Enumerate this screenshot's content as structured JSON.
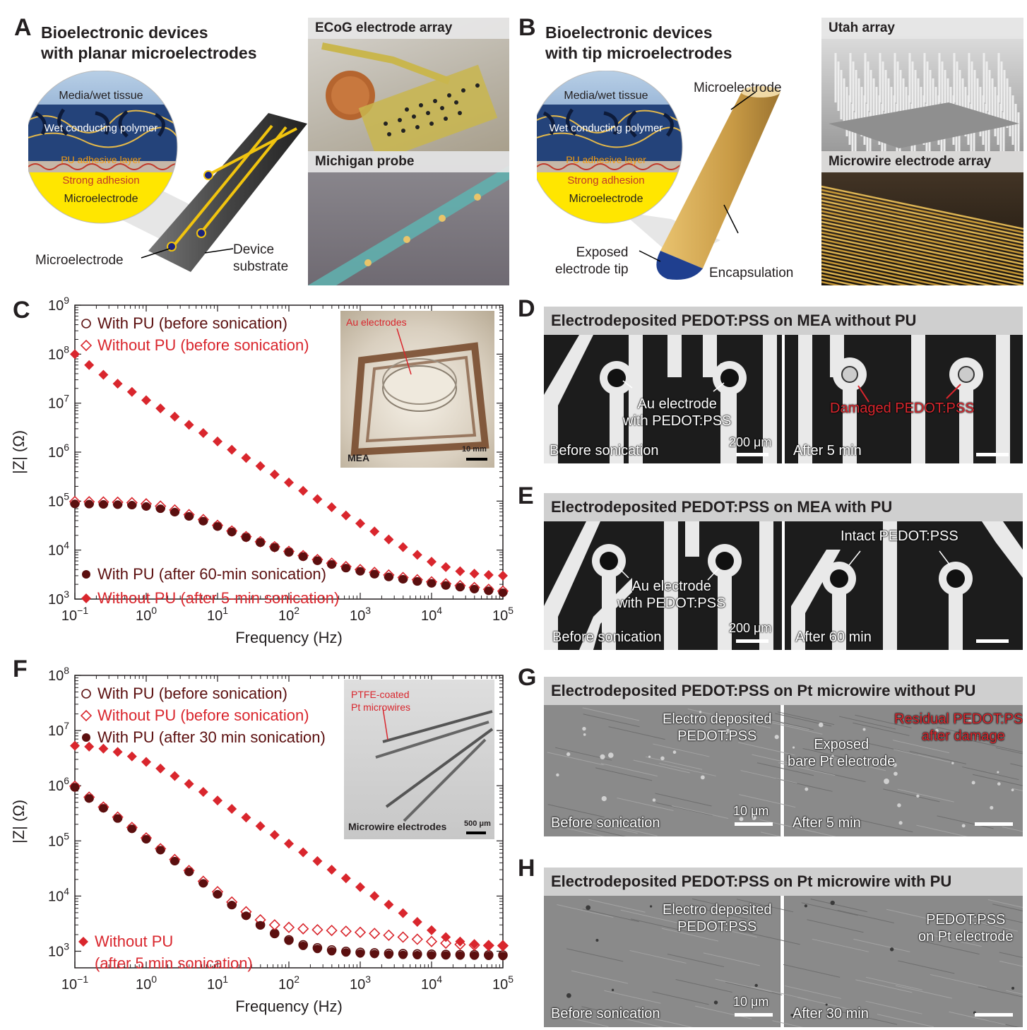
{
  "panelA": {
    "letter": "A",
    "title_line1": "Bioelectronic devices",
    "title_line2": "with planar microelectrodes",
    "circle": {
      "media": "Media/wet tissue",
      "polymer": "Wet conducting polymer",
      "pu": "PU adhesive layer",
      "adhesion": "Strong adhesion",
      "electrode": "Microelectrode"
    },
    "callout_microelectrode": "Microelectrode",
    "callout_substrate_line1": "Device",
    "callout_substrate_line2": "substrate",
    "photo_top": "ECoG electrode array",
    "photo_bottom": "Michigan probe"
  },
  "panelB": {
    "letter": "B",
    "title_line1": "Bioelectronic devices",
    "title_line2": "with tip microelectrodes",
    "circle": {
      "media": "Media/wet tissue",
      "polymer": "Wet conducting polymer",
      "pu": "PU adhesive layer",
      "adhesion": "Strong adhesion",
      "electrode": "Microelectrode"
    },
    "callout_microelectrode": "Microelectrode",
    "callout_exposed_line1": "Exposed",
    "callout_exposed_line2": "electrode tip",
    "callout_encapsulation": "Encapsulation",
    "photo_top": "Utah array",
    "photo_bottom": "Microwire electrode array"
  },
  "panelC": {
    "letter": "C",
    "inset_label": "MEA",
    "inset_annotation": "Au electrodes",
    "inset_scale": "10 mm",
    "legend_top": [
      "With PU (before sonication)",
      "Without PU (before sonication)"
    ],
    "legend_bottom": [
      "With PU (after 60-min sonication)",
      "Without PU (after 5-min sonication)"
    ]
  },
  "panelF": {
    "letter": "F",
    "inset_label": "Microwire electrodes",
    "inset_annotation_line1": "PTFE-coated",
    "inset_annotation_line2": "Pt microwires",
    "inset_scale": "500 μm",
    "legend_top": [
      "With PU (before sonication)",
      "Without PU (before sonication)",
      "With PU (after 30 min sonication)"
    ],
    "legend_bottom_line1": "Without PU",
    "legend_bottom_line2": "(after 5 min sonication)"
  },
  "panelD": {
    "letter": "D",
    "title": "Electrodeposited PEDOT:PSS on MEA without PU",
    "left_annot_line1": "Au electrode",
    "left_annot_line2": "with PEDOT:PSS",
    "left_caption": "Before sonication",
    "scale": "200 μm",
    "right_annot": "Damaged PEDOT:PSS",
    "right_caption": "After 5 min"
  },
  "panelE": {
    "letter": "E",
    "title": "Electrodeposited PEDOT:PSS on MEA with PU",
    "left_annot_line1": "Au electrode",
    "left_annot_line2": "with PEDOT:PSS",
    "left_caption": "Before sonication",
    "scale": "200 μm",
    "right_annot": "Intact PEDOT:PSS",
    "right_caption": "After 60 min"
  },
  "panelG": {
    "letter": "G",
    "title": "Electrodeposited PEDOT:PSS on Pt microwire without PU",
    "left_annot_line1": "Electro deposited",
    "left_annot_line2": "PEDOT:PSS",
    "left_caption": "Before sonication",
    "scale": "10 μm",
    "right_annot_line1": "Exposed",
    "right_annot_line2": "bare Pt electrode",
    "right_annot_red_line1": "Residual PEDOT:PSS",
    "right_annot_red_line2": "after damage",
    "right_caption": "After 5 min"
  },
  "panelH": {
    "letter": "H",
    "title": "Electrodeposited PEDOT:PSS on Pt microwire with PU",
    "left_annot_line1": "Electro deposited",
    "left_annot_line2": "PEDOT:PSS",
    "left_caption": "Before sonication",
    "scale": "10 μm",
    "right_annot_line1": "PEDOT:PSS",
    "right_annot_line2": "on Pt electrode",
    "right_caption": "After 30 min"
  },
  "colors": {
    "dark_series": "#5b0f0f",
    "red_series": "#d9262d",
    "gold": "#f1c40f"
  },
  "chart_data": [
    {
      "type": "scatter",
      "panel": "C",
      "xlabel": "Frequency (Hz)",
      "ylabel": "|Z| (Ω)",
      "x_scale": "log",
      "y_scale": "log",
      "xlim": [
        0.1,
        100000
      ],
      "ylim": [
        1000,
        1000000000
      ],
      "x_ticks": [
        "10−1",
        "100",
        "101",
        "102",
        "103",
        "104",
        "105"
      ],
      "y_ticks": [
        "103",
        "104",
        "105",
        "106",
        "107",
        "108",
        "109"
      ],
      "x": [
        0.1,
        0.1585,
        0.2512,
        0.3981,
        0.631,
        1,
        1.585,
        2.512,
        3.981,
        6.31,
        10,
        15.85,
        25.12,
        39.81,
        63.1,
        100,
        158.5,
        251.2,
        398.1,
        631,
        1000,
        1585,
        2512,
        3981,
        6310,
        10000,
        15850,
        25120,
        39810,
        63100,
        100000
      ],
      "series": [
        {
          "name": "With PU (before sonication)",
          "marker": "open-circle",
          "values": [
            90000,
            89000,
            88000,
            87000,
            85000,
            80000,
            72000,
            61000,
            50000,
            40000,
            31000,
            24000,
            18500,
            14500,
            11500,
            9200,
            7500,
            6200,
            5200,
            4400,
            3800,
            3300,
            2900,
            2600,
            2350,
            2150,
            1950,
            1800,
            1650,
            1520,
            1400
          ]
        },
        {
          "name": "Without PU (before sonication)",
          "marker": "open-diamond",
          "values": [
            98000,
            97000,
            96000,
            95000,
            93000,
            88000,
            79000,
            66000,
            53000,
            42000,
            32000,
            24500,
            18800,
            14800,
            11700,
            9400,
            7700,
            6400,
            5400,
            4600,
            4000,
            3500,
            3100,
            2750,
            2480,
            2250,
            2050,
            1880,
            1720,
            1580,
            1450
          ]
        },
        {
          "name": "With PU (after 60-min sonication)",
          "marker": "filled-circle",
          "values": [
            88000,
            87000,
            86000,
            85000,
            83000,
            78000,
            70000,
            60000,
            49000,
            39000,
            30500,
            23500,
            18200,
            14300,
            11300,
            9100,
            7400,
            6100,
            5100,
            4300,
            3700,
            3250,
            2850,
            2550,
            2300,
            2100,
            1900,
            1750,
            1600,
            1480,
            1350
          ]
        },
        {
          "name": "Without PU (after 5-min sonication)",
          "marker": "filled-diamond",
          "values": [
            100000000,
            60000000,
            38000000,
            25000000,
            17000000,
            11500000,
            7800000,
            5300000,
            3600000,
            2450000,
            1650000,
            1120000,
            760000,
            520000,
            350000,
            240000,
            162000,
            110000,
            75000,
            51000,
            35000,
            24000,
            16500,
            11500,
            8000,
            5800,
            4500,
            3700,
            3300,
            3100,
            3000
          ]
        }
      ]
    },
    {
      "type": "scatter",
      "panel": "F",
      "xlabel": "Frequency (Hz)",
      "ylabel": "|Z| (Ω)",
      "x_scale": "log",
      "y_scale": "log",
      "xlim": [
        0.1,
        100000
      ],
      "ylim": [
        500,
        100000000
      ],
      "x_ticks": [
        "10−1",
        "100",
        "101",
        "102",
        "103",
        "104",
        "105"
      ],
      "y_ticks": [
        "103",
        "104",
        "105",
        "106",
        "107",
        "108"
      ],
      "x": [
        0.1,
        0.1585,
        0.2512,
        0.3981,
        0.631,
        1,
        1.585,
        2.512,
        3.981,
        6.31,
        10,
        15.85,
        25.12,
        39.81,
        63.1,
        100,
        158.5,
        251.2,
        398.1,
        631,
        1000,
        1585,
        2512,
        3981,
        6310,
        10000,
        15850,
        25120,
        39810,
        63100,
        100000
      ],
      "series": [
        {
          "name": "With PU (before sonication)",
          "marker": "open-circle",
          "values": [
            950000,
            600000,
            400000,
            260000,
            170000,
            110000,
            70000,
            44000,
            28000,
            17500,
            11000,
            7000,
            4500,
            3000,
            2100,
            1600,
            1300,
            1150,
            1050,
            990,
            950,
            930,
            910,
            900,
            890,
            880,
            870,
            865,
            860,
            855,
            850
          ]
        },
        {
          "name": "Without PU (before sonication)",
          "marker": "open-diamond",
          "values": [
            980000,
            620000,
            410000,
            270000,
            175000,
            113000,
            72000,
            46000,
            29000,
            18500,
            12000,
            7800,
            5200,
            3700,
            3000,
            2700,
            2550,
            2450,
            2380,
            2300,
            2200,
            2100,
            1950,
            1800,
            1650,
            1500,
            1400,
            1330,
            1290,
            1270,
            1260
          ]
        },
        {
          "name": "With PU (after 30 min sonication)",
          "marker": "filled-circle",
          "values": [
            940000,
            590000,
            390000,
            255000,
            165000,
            107000,
            68000,
            43000,
            27500,
            17000,
            10800,
            6900,
            4400,
            2950,
            2050,
            1550,
            1250,
            1100,
            1000,
            950,
            910,
            890,
            870,
            860,
            850,
            845,
            840,
            835,
            830,
            825,
            820
          ]
        },
        {
          "name": "Without PU (after 5 min sonication)",
          "marker": "filled-diamond",
          "values": [
            5300000,
            5100000,
            4700000,
            4100000,
            3400000,
            2700000,
            2050000,
            1500000,
            1080000,
            770000,
            540000,
            380000,
            265000,
            185000,
            128000,
            89000,
            62000,
            43000,
            30000,
            21000,
            14500,
            10000,
            7000,
            4900,
            3400,
            2400,
            1800,
            1500,
            1350,
            1280,
            1250
          ]
        }
      ]
    }
  ]
}
